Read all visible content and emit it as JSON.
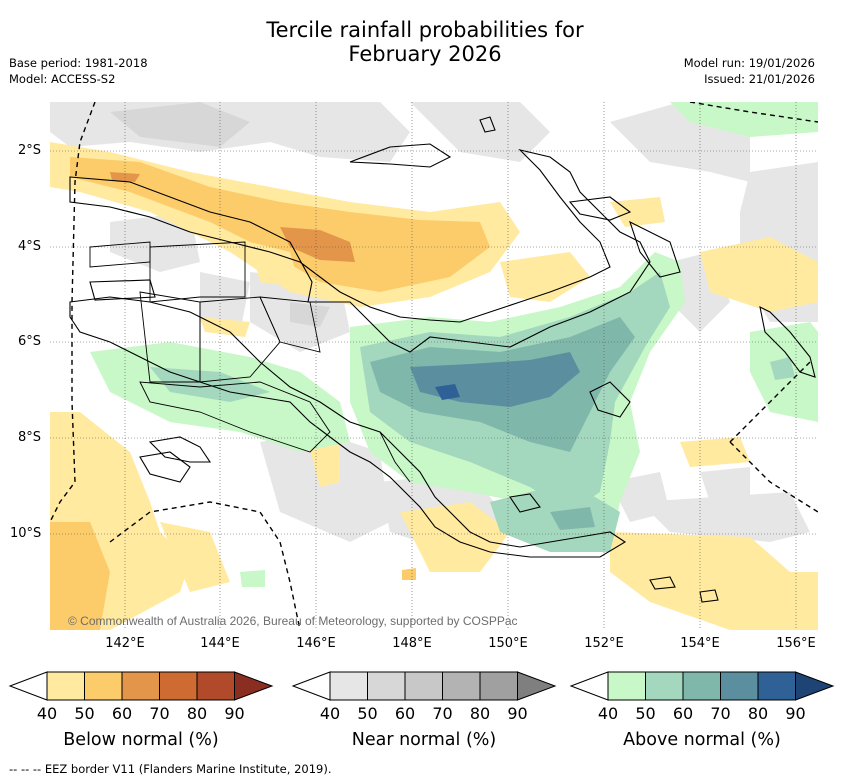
{
  "title_line1": "Tercile rainfall probabilities for",
  "title_line2": "February 2026",
  "base_period": "Base period: 1981-2018",
  "model": "Model: ACCESS-S2",
  "model_run": "Model run: 19/01/2026",
  "issued": "Issued: 21/01/2026",
  "copyright": "© Commonwealth of Australia 2026, Bureau of Meteorology, supported by COSPPac",
  "lat_labels": [
    "2°S",
    "4°S",
    "6°S",
    "8°S",
    "10°S"
  ],
  "lon_labels": [
    "142°E",
    "144°E",
    "146°E",
    "148°E",
    "150°E",
    "152°E",
    "154°E",
    "156°E"
  ],
  "colorbars": [
    {
      "label": "Below normal (%)",
      "ticks": [
        "40",
        "50",
        "60",
        "70",
        "80",
        "90"
      ],
      "colors": [
        "#ffeaa0",
        "#fccc6b",
        "#e3954a",
        "#cd6b32",
        "#b04a2a",
        "#8a2e22"
      ]
    },
    {
      "label": "Near normal (%)",
      "ticks": [
        "40",
        "50",
        "60",
        "70",
        "80",
        "90"
      ],
      "colors": [
        "#e6e6e6",
        "#d7d7d7",
        "#c8c8c8",
        "#b3b3b3",
        "#a0a0a0",
        "#7f7f7f"
      ]
    },
    {
      "label": "Above normal (%)",
      "ticks": [
        "40",
        "50",
        "60",
        "70",
        "80",
        "90"
      ],
      "colors": [
        "#c8f7c8",
        "#a3d8be",
        "#80b7ab",
        "#5b8fa0",
        "#2f6096",
        "#1e4476"
      ]
    }
  ],
  "footer": "--  --  -- EEZ border V11 (Flanders Marine Institute, 2019)."
}
